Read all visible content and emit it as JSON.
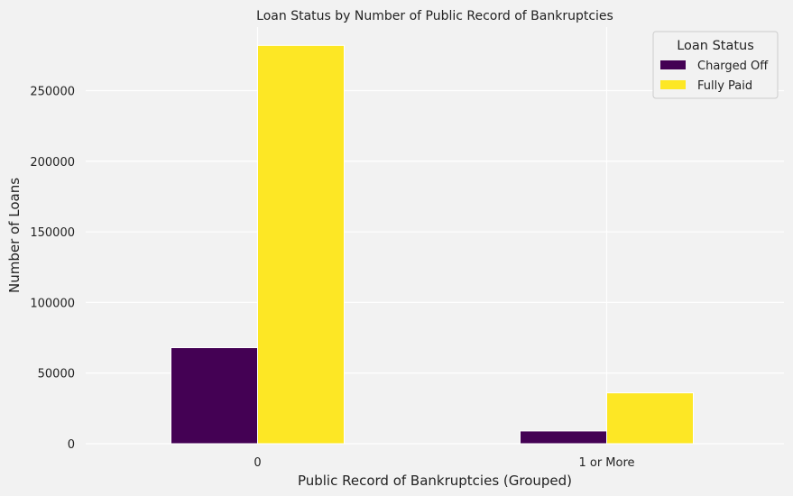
{
  "chart_data": {
    "type": "bar",
    "title": "Loan Status by Number of Public Record of Bankruptcies",
    "xlabel": "Public Record of Bankruptcies (Grouped)",
    "ylabel": "Number of Loans",
    "categories": [
      "0",
      "1 or More"
    ],
    "series": [
      {
        "name": "Charged Off",
        "values": [
          68000,
          9000
        ],
        "color": "#440154"
      },
      {
        "name": "Fully Paid",
        "values": [
          282000,
          36000
        ],
        "color": "#fde725"
      }
    ],
    "ylim": [
      0,
      295000
    ],
    "yticks": [
      0,
      50000,
      100000,
      150000,
      200000,
      250000
    ],
    "grid": true,
    "legend": {
      "title": "Loan Status",
      "placement": "top-right"
    }
  }
}
